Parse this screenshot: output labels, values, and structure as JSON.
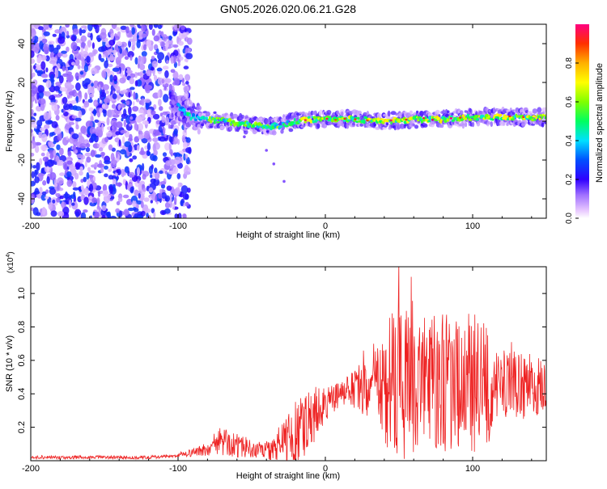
{
  "title": "GN05.2026.020.06.21.G28",
  "chart_data": [
    {
      "type": "heatmap",
      "title": "GN05.2026.020.06.21.G28",
      "xlabel": "Height of straight line (km)",
      "ylabel": "Frequency (Hz)",
      "xlim": [
        -200,
        150
      ],
      "ylim": [
        -50,
        50
      ],
      "x_ticks": [
        -200,
        -100,
        0,
        100
      ],
      "x_tick_labels": [
        "-200",
        "-100",
        "0",
        "100"
      ],
      "y_ticks": [
        -40,
        -20,
        0,
        20,
        40
      ],
      "y_tick_labels": [
        "-40",
        "-20",
        "0",
        "20",
        "40"
      ],
      "colorbar": {
        "label": "Normalized spectral amplitude",
        "range": [
          0,
          1
        ],
        "ticks": [
          0.0,
          0.2,
          0.4,
          0.6,
          0.8
        ],
        "tick_labels": [
          "0.0",
          "0.2",
          "0.4",
          "0.6",
          "0.8"
        ]
      },
      "ridge": {
        "description_values": "frequency track (Hz) vs height (km)",
        "x": [
          -100,
          -95,
          -90,
          -80,
          -70,
          -60,
          -50,
          -40,
          -30,
          -20,
          -10,
          0,
          20,
          40,
          60,
          80,
          100,
          120,
          150
        ],
        "y": [
          8,
          4,
          2,
          1,
          0,
          -1,
          -2,
          -3,
          -2,
          0,
          1,
          1,
          1,
          0,
          1,
          1,
          2,
          2,
          2
        ]
      },
      "noise_region_x": [
        -200,
        -100
      ],
      "outlier_points": {
        "x": [
          -55,
          -40,
          -35,
          -28
        ],
        "y": [
          -8,
          -15,
          -22,
          -31
        ]
      }
    },
    {
      "type": "line",
      "xlabel": "Height of straight line (km)",
      "ylabel": "SNR (10 * v/v)",
      "multiplier_label": "(x10",
      "multiplier_exponent": "4",
      "multiplier_close": ")",
      "xlim": [
        -200,
        150
      ],
      "ylim": [
        0,
        1.16
      ],
      "x_ticks": [
        -200,
        -100,
        0,
        100
      ],
      "x_tick_labels": [
        "-200",
        "-100",
        "0",
        "100"
      ],
      "y_ticks": [
        0.2,
        0.4,
        0.6,
        0.8,
        1.0
      ],
      "y_tick_labels": [
        "0.2",
        "0.4",
        "0.6",
        "0.8",
        "1.0"
      ],
      "color": "#ee2222",
      "envelope": {
        "x": [
          -200,
          -120,
          -100,
          -80,
          -75,
          -70,
          -60,
          -50,
          -40,
          -30,
          -20,
          -10,
          0,
          10,
          20,
          30,
          40,
          50,
          60,
          70,
          80,
          90,
          100,
          110,
          120,
          130,
          140,
          150
        ],
        "base": [
          0.02,
          0.02,
          0.03,
          0.07,
          0.1,
          0.11,
          0.1,
          0.07,
          0.06,
          0.1,
          0.15,
          0.25,
          0.33,
          0.4,
          0.42,
          0.45,
          0.46,
          0.48,
          0.48,
          0.47,
          0.47,
          0.46,
          0.46,
          0.45,
          0.45,
          0.45,
          0.44,
          0.44
        ],
        "amp": [
          0.01,
          0.01,
          0.01,
          0.04,
          0.07,
          0.08,
          0.08,
          0.05,
          0.06,
          0.12,
          0.22,
          0.2,
          0.1,
          0.08,
          0.12,
          0.2,
          0.38,
          0.5,
          0.5,
          0.38,
          0.42,
          0.38,
          0.45,
          0.35,
          0.22,
          0.2,
          0.2,
          0.15
        ]
      }
    }
  ]
}
